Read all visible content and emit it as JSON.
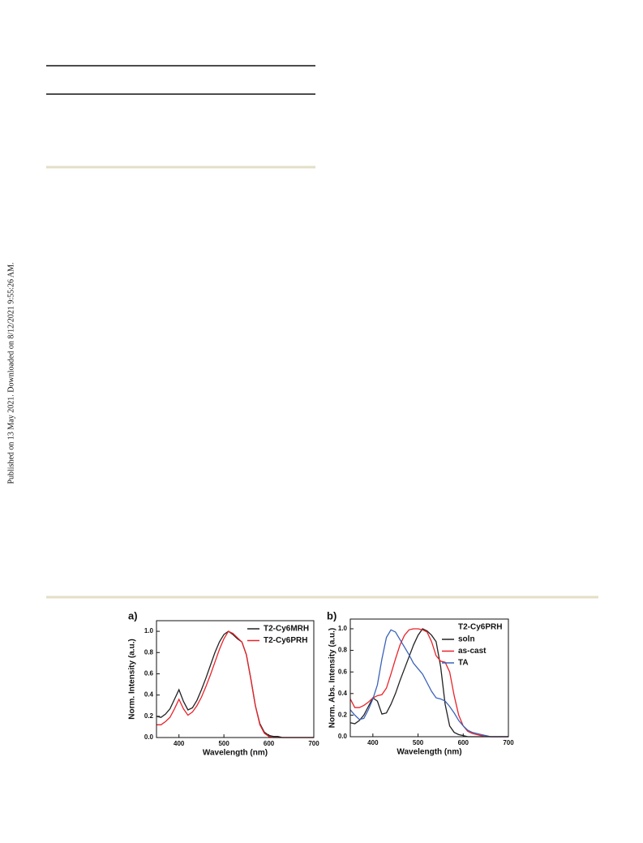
{
  "side_note": "Published on 13 May 2021. Downloaded on 8/12/2021 9:55:26 AM.",
  "chart_data": [
    {
      "type": "line",
      "panel": "a)",
      "x_label": "Wavelength (nm)",
      "y_label": "Norm. Intensity (a.u.)",
      "x": [
        350,
        360,
        370,
        380,
        390,
        400,
        410,
        420,
        430,
        440,
        450,
        460,
        470,
        480,
        490,
        500,
        510,
        520,
        530,
        540,
        550,
        560,
        570,
        580,
        590,
        600,
        610,
        620,
        630,
        640,
        650,
        660,
        670,
        680,
        690,
        700
      ],
      "series": [
        {
          "name": "T2-Cy6MRH",
          "color": "#222222",
          "values": [
            0.2,
            0.19,
            0.22,
            0.27,
            0.36,
            0.45,
            0.34,
            0.26,
            0.28,
            0.35,
            0.45,
            0.56,
            0.68,
            0.8,
            0.9,
            0.97,
            1.0,
            0.97,
            0.93,
            0.9,
            0.78,
            0.55,
            0.3,
            0.13,
            0.05,
            0.02,
            0.01,
            0.01,
            0,
            0,
            0,
            0,
            0,
            0,
            0,
            0
          ]
        },
        {
          "name": "T2-Cy6PRH",
          "color": "#e8232a",
          "values": [
            0.12,
            0.12,
            0.15,
            0.19,
            0.27,
            0.36,
            0.27,
            0.21,
            0.24,
            0.3,
            0.38,
            0.48,
            0.59,
            0.71,
            0.83,
            0.93,
            1.0,
            0.98,
            0.94,
            0.9,
            0.78,
            0.55,
            0.3,
            0.12,
            0.04,
            0.01,
            0,
            0,
            0,
            0,
            0,
            0,
            0,
            0,
            0,
            0
          ]
        }
      ],
      "xlim": [
        350,
        700
      ],
      "xticks": [
        400,
        500,
        600,
        700
      ],
      "ylim": [
        0,
        1.1
      ],
      "yticks": [
        {
          "value": 0,
          "label": "0.0"
        },
        0.2,
        0.4,
        0.6,
        0.8,
        {
          "value": 1,
          "label": "1.0"
        }
      ],
      "legend": "upper right"
    },
    {
      "type": "line",
      "panel": "b)",
      "legend_title": "T2-Cy6PRH",
      "x_label": "Wavelength (nm)",
      "y_label": "Norm. Abs. Intensity (a.u.)",
      "x": [
        350,
        360,
        370,
        380,
        390,
        400,
        410,
        420,
        430,
        440,
        450,
        460,
        470,
        480,
        490,
        500,
        510,
        520,
        530,
        540,
        550,
        560,
        570,
        580,
        590,
        600,
        610,
        620,
        630,
        640,
        650,
        660,
        670,
        680,
        690,
        700
      ],
      "series": [
        {
          "name": "soln",
          "color": "#222222",
          "values": [
            0.13,
            0.12,
            0.15,
            0.2,
            0.28,
            0.36,
            0.33,
            0.21,
            0.22,
            0.3,
            0.4,
            0.52,
            0.63,
            0.74,
            0.85,
            0.94,
            1.0,
            0.98,
            0.94,
            0.88,
            0.65,
            0.3,
            0.1,
            0.04,
            0.02,
            0.01,
            0,
            0,
            0,
            0,
            0,
            0,
            0,
            0,
            0,
            0
          ]
        },
        {
          "name": "as-cast",
          "color": "#e8232a",
          "values": [
            0.35,
            0.27,
            0.27,
            0.29,
            0.32,
            0.36,
            0.38,
            0.39,
            0.45,
            0.58,
            0.72,
            0.85,
            0.94,
            0.99,
            1.0,
            1.0,
            0.99,
            0.97,
            0.88,
            0.75,
            0.7,
            0.69,
            0.6,
            0.38,
            0.2,
            0.1,
            0.05,
            0.03,
            0.02,
            0.01,
            0.01,
            0,
            0,
            0,
            0,
            0
          ]
        },
        {
          "name": "TA",
          "color": "#3a62b8",
          "values": [
            0.25,
            0.2,
            0.16,
            0.17,
            0.25,
            0.35,
            0.48,
            0.72,
            0.92,
            0.99,
            0.97,
            0.9,
            0.83,
            0.76,
            0.68,
            0.63,
            0.58,
            0.5,
            0.42,
            0.36,
            0.35,
            0.33,
            0.28,
            0.22,
            0.15,
            0.1,
            0.06,
            0.04,
            0.03,
            0.02,
            0.01,
            0,
            0,
            0,
            0,
            0
          ]
        }
      ],
      "xlim": [
        350,
        700
      ],
      "xticks": [
        400,
        500,
        600,
        700
      ],
      "ylim": [
        0,
        1.09
      ],
      "yticks": [
        {
          "value": 0,
          "label": "0.0"
        },
        0.2,
        0.4,
        0.6,
        0.8,
        {
          "value": 1,
          "label": "1.0"
        }
      ],
      "legend": "upper right"
    }
  ]
}
